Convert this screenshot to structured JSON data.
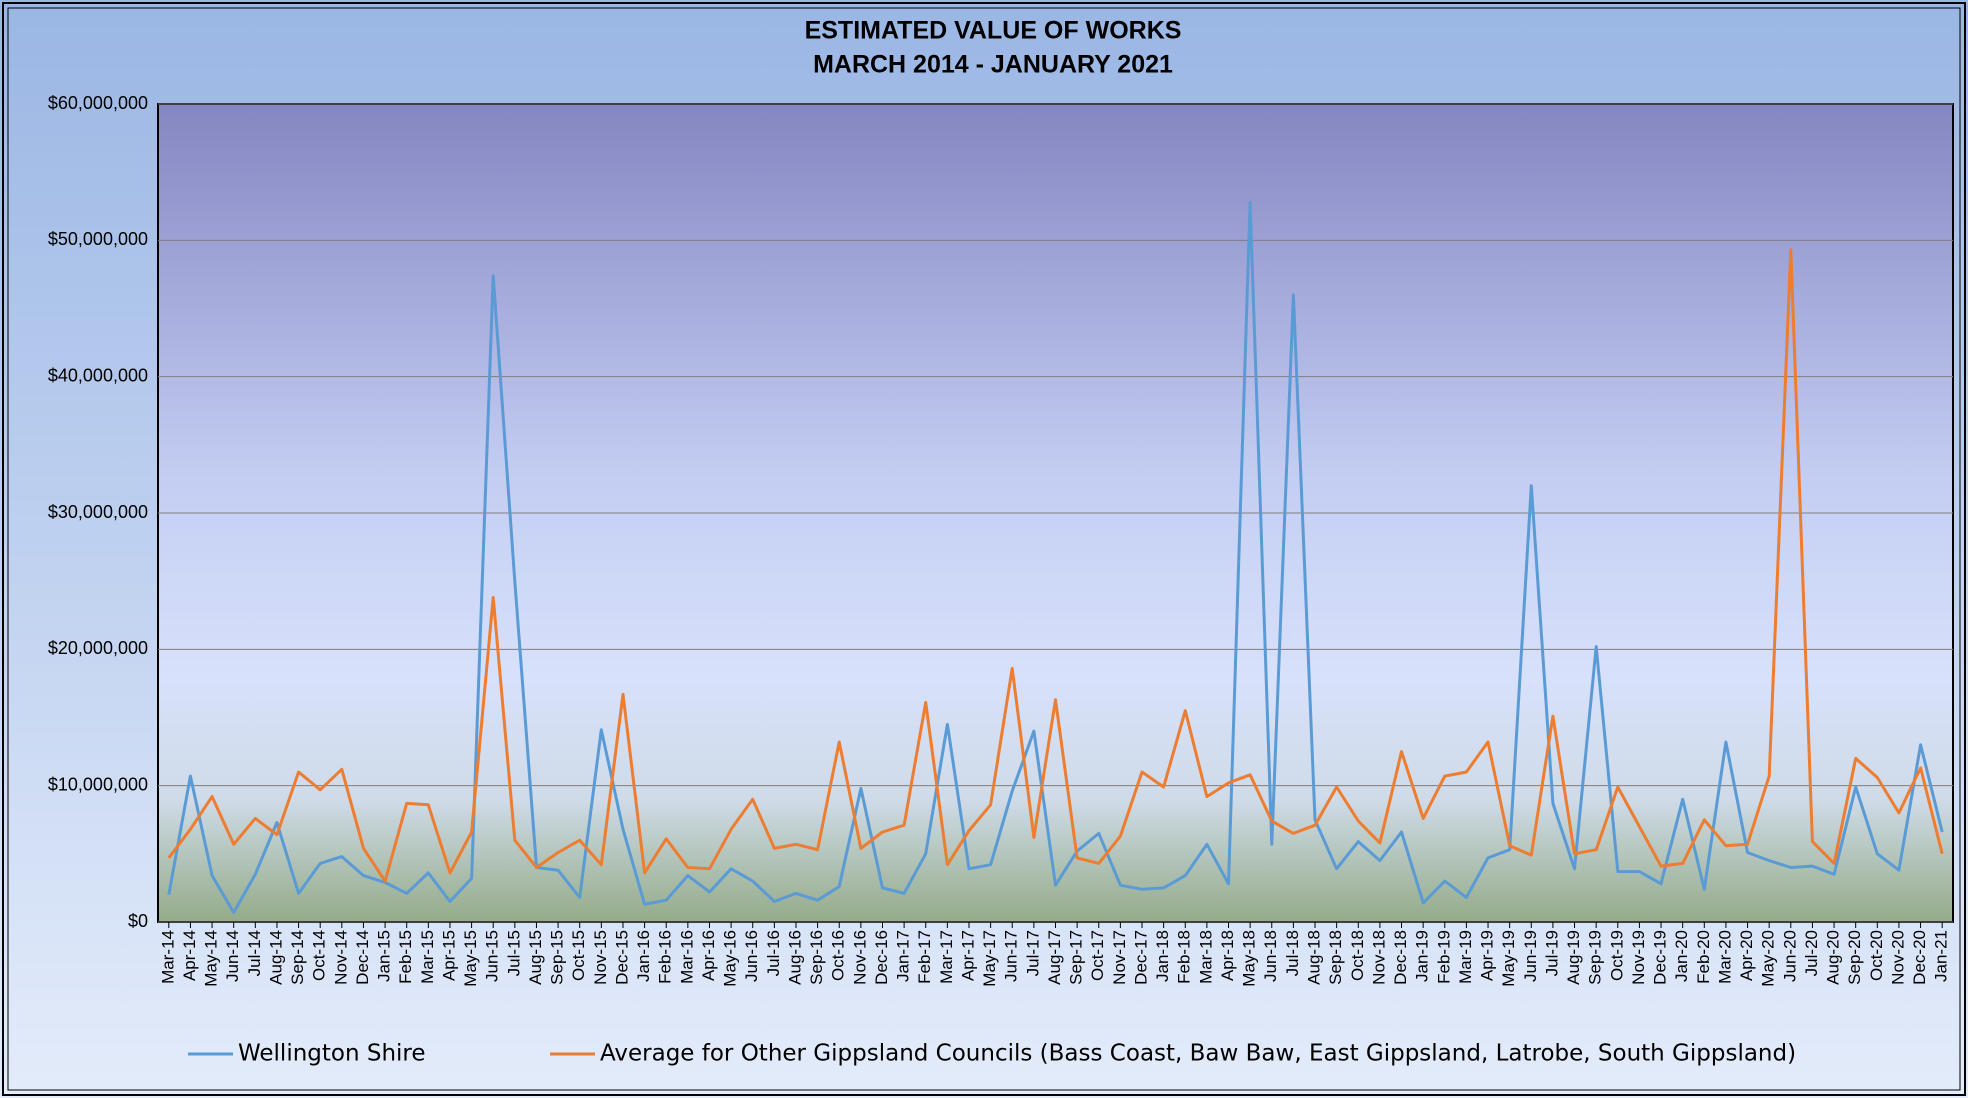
{
  "chart_data": {
    "type": "line",
    "title": "ESTIMATED VALUE OF WORKS",
    "subtitle": "MARCH 2014 - JANUARY 2021",
    "categories": [
      "Mar-14",
      "Apr-14",
      "May-14",
      "Jun-14",
      "Jul-14",
      "Aug-14",
      "Sep-14",
      "Oct-14",
      "Nov-14",
      "Dec-14",
      "Jan-15",
      "Feb-15",
      "Mar-15",
      "Apr-15",
      "May-15",
      "Jun-15",
      "Jul-15",
      "Aug-15",
      "Sep-15",
      "Oct-15",
      "Nov-15",
      "Dec-15",
      "Jan-16",
      "Feb-16",
      "Mar-16",
      "Apr-16",
      "May-16",
      "Jun-16",
      "Jul-16",
      "Aug-16",
      "Sep-16",
      "Oct-16",
      "Nov-16",
      "Dec-16",
      "Jan-17",
      "Feb-17",
      "Mar-17",
      "Apr-17",
      "May-17",
      "Jun-17",
      "Jul-17",
      "Aug-17",
      "Sep-17",
      "Oct-17",
      "Nov-17",
      "Dec-17",
      "Jan-18",
      "Feb-18",
      "Mar-18",
      "Apr-18",
      "May-18",
      "Jun-18",
      "Jul-18",
      "Aug-18",
      "Sep-18",
      "Oct-18",
      "Nov-18",
      "Dec-18",
      "Jan-19",
      "Feb-19",
      "Mar-19",
      "Apr-19",
      "May-19",
      "Jun-19",
      "Jul-19",
      "Aug-19",
      "Sep-19",
      "Oct-19",
      "Nov-19",
      "Dec-19",
      "Jan-20",
      "Feb-20",
      "Mar-20",
      "Apr-20",
      "May-20",
      "Jun-20",
      "Jul-20",
      "Aug-20",
      "Sep-20",
      "Oct-20",
      "Nov-20",
      "Dec-20",
      "Jan-21"
    ],
    "series": [
      {
        "name": "Wellington Shire",
        "color": "#5b9bd5",
        "values": [
          2000000,
          10700000,
          3400000,
          700000,
          3500000,
          7300000,
          2100000,
          4300000,
          4800000,
          3400000,
          2900000,
          2100000,
          3600000,
          1500000,
          3200000,
          47400000,
          25000000,
          4000000,
          3800000,
          1800000,
          14100000,
          6800000,
          1300000,
          1600000,
          3400000,
          2200000,
          3900000,
          3000000,
          1500000,
          2100000,
          1600000,
          2600000,
          9800000,
          2500000,
          2100000,
          5000000,
          14500000,
          3900000,
          4200000,
          9600000,
          14000000,
          2700000,
          5200000,
          6500000,
          2700000,
          2400000,
          2500000,
          3400000,
          5700000,
          2800000,
          52800000,
          5700000,
          46000000,
          7500000,
          3900000,
          5900000,
          4500000,
          6600000,
          1400000,
          3000000,
          1800000,
          4700000,
          5300000,
          32000000,
          8700000,
          3900000,
          20200000,
          3700000,
          3700000,
          2800000,
          9000000,
          2400000,
          13200000,
          5100000,
          4500000,
          4000000,
          4100000,
          3500000,
          9900000,
          5000000,
          3800000,
          13000000,
          6600000
        ]
      },
      {
        "name": "Average for Other Gippsland Councils (Bass Coast, Baw Baw, East Gippsland, Latrobe, South Gippsland)",
        "color": "#ed7d31",
        "values": [
          4700000,
          6800000,
          9200000,
          5700000,
          7600000,
          6400000,
          11000000,
          9700000,
          11200000,
          5400000,
          3000000,
          8700000,
          8600000,
          3600000,
          6600000,
          23800000,
          6000000,
          4000000,
          5100000,
          6000000,
          4200000,
          16700000,
          3600000,
          6100000,
          4000000,
          3900000,
          6800000,
          9000000,
          5400000,
          5700000,
          5300000,
          13200000,
          5400000,
          6600000,
          7100000,
          16100000,
          4200000,
          6700000,
          8600000,
          18600000,
          6200000,
          16300000,
          4700000,
          4300000,
          6300000,
          11000000,
          9900000,
          15500000,
          9200000,
          10200000,
          10800000,
          7400000,
          6500000,
          7100000,
          9900000,
          7400000,
          5800000,
          12500000,
          7600000,
          10700000,
          11000000,
          13200000,
          5600000,
          4900000,
          15100000,
          5000000,
          5300000,
          9900000,
          7000000,
          4100000,
          4300000,
          7500000,
          5600000,
          5700000,
          10700000,
          49300000,
          5900000,
          4300000,
          12000000,
          10600000,
          8000000,
          11300000,
          5000000
        ]
      }
    ],
    "ylim": [
      0,
      60000000
    ],
    "yticks": [
      {
        "value": 0,
        "label": "$0"
      },
      {
        "value": 10000000,
        "label": "$10,000,000"
      },
      {
        "value": 20000000,
        "label": "$20,000,000"
      },
      {
        "value": 30000000,
        "label": "$30,000,000"
      },
      {
        "value": 40000000,
        "label": "$40,000,000"
      },
      {
        "value": 50000000,
        "label": "$50,000,000"
      },
      {
        "value": 60000000,
        "label": "$60,000,000"
      }
    ],
    "grid": true,
    "legend": "bottom"
  }
}
